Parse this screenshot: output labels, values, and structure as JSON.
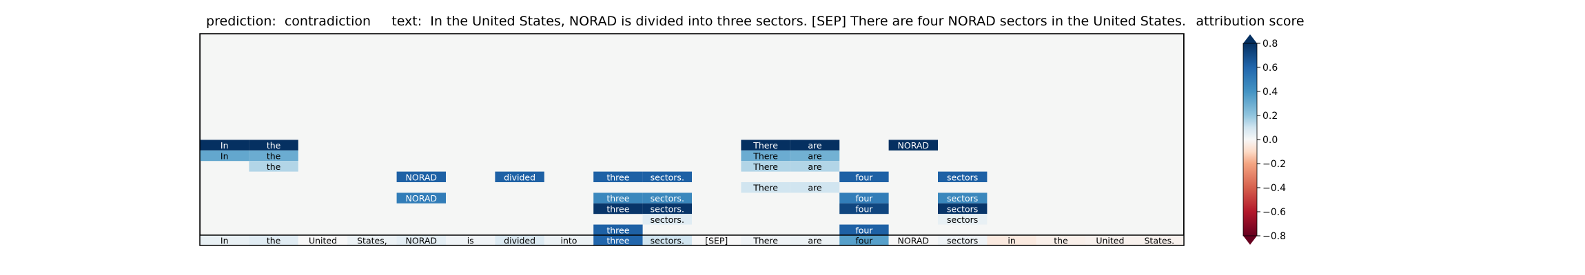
{
  "header": {
    "title": "prediction:  contradiction     text:  In the United States, NORAD is divided into three sectors. [SEP] There are four NORAD sectors in the United States.",
    "colorbar_title": "attribution score"
  },
  "colors": {
    "panel_background": "#f5f6f5",
    "colormap": "RdBu",
    "dark_text": "#000000",
    "light_text": "#ffffff"
  },
  "chart_data": {
    "type": "heatmap",
    "title": "prediction:  contradiction     text:  In the United States, NORAD is divided into three sectors. [SEP] There are four NORAD sectors in the United States.",
    "tokens": [
      "In",
      "the",
      "United",
      "States,",
      "NORAD",
      "is",
      "divided",
      "into",
      "three",
      "sectors.",
      "[SEP]",
      "There",
      "are",
      "four",
      "NORAD",
      "sectors",
      "in",
      "the",
      "United",
      "States."
    ],
    "base_row": [
      0.04,
      0.06,
      0.0,
      0.03,
      0.05,
      0.02,
      0.07,
      0.03,
      0.6,
      0.1,
      0.0,
      0.02,
      0.03,
      0.35,
      0.0,
      0.02,
      -0.05,
      -0.03,
      -0.02,
      -0.02
    ],
    "rows": [
      {
        "level": 9,
        "cells": [
          [
            0,
            0.85
          ],
          [
            1,
            0.85
          ],
          [
            11,
            0.85
          ],
          [
            12,
            0.85
          ],
          [
            14,
            0.85
          ]
        ]
      },
      {
        "level": 8,
        "cells": [
          [
            0,
            0.32
          ],
          [
            1,
            0.3
          ],
          [
            11,
            0.3
          ],
          [
            12,
            0.28
          ]
        ]
      },
      {
        "level": 7,
        "cells": [
          [
            1,
            0.15
          ],
          [
            11,
            0.15
          ],
          [
            12,
            0.15
          ]
        ]
      },
      {
        "level": 6,
        "cells": [
          [
            4,
            0.62
          ],
          [
            6,
            0.62
          ],
          [
            8,
            0.62
          ],
          [
            9,
            0.62
          ],
          [
            13,
            0.62
          ],
          [
            15,
            0.62
          ]
        ]
      },
      {
        "level": 5,
        "cells": [
          [
            11,
            0.1
          ],
          [
            12,
            0.1
          ]
        ]
      },
      {
        "level": 4,
        "cells": [
          [
            4,
            0.5
          ],
          [
            8,
            0.45
          ],
          [
            9,
            0.45
          ],
          [
            13,
            0.5
          ],
          [
            15,
            0.45
          ]
        ]
      },
      {
        "level": 3,
        "cells": [
          [
            8,
            0.78
          ],
          [
            9,
            0.78
          ],
          [
            13,
            0.72
          ],
          [
            15,
            0.78
          ]
        ]
      },
      {
        "level": 2,
        "cells": [
          [
            9,
            0.06
          ],
          [
            15,
            0.04
          ]
        ]
      },
      {
        "level": 1,
        "cells": [
          [
            8,
            0.62
          ],
          [
            13,
            0.62
          ]
        ]
      }
    ],
    "colorbar": {
      "label": "attribution score",
      "range": [
        -0.8,
        0.8
      ],
      "ticks": [
        -0.8,
        -0.6,
        -0.4,
        -0.2,
        0.0,
        0.2,
        0.4,
        0.6,
        0.8
      ],
      "tick_labels": [
        "−0.8",
        "−0.6",
        "−0.4",
        "−0.2",
        "0.0",
        "0.2",
        "0.4",
        "0.6",
        "0.8"
      ],
      "extend": "both"
    }
  }
}
